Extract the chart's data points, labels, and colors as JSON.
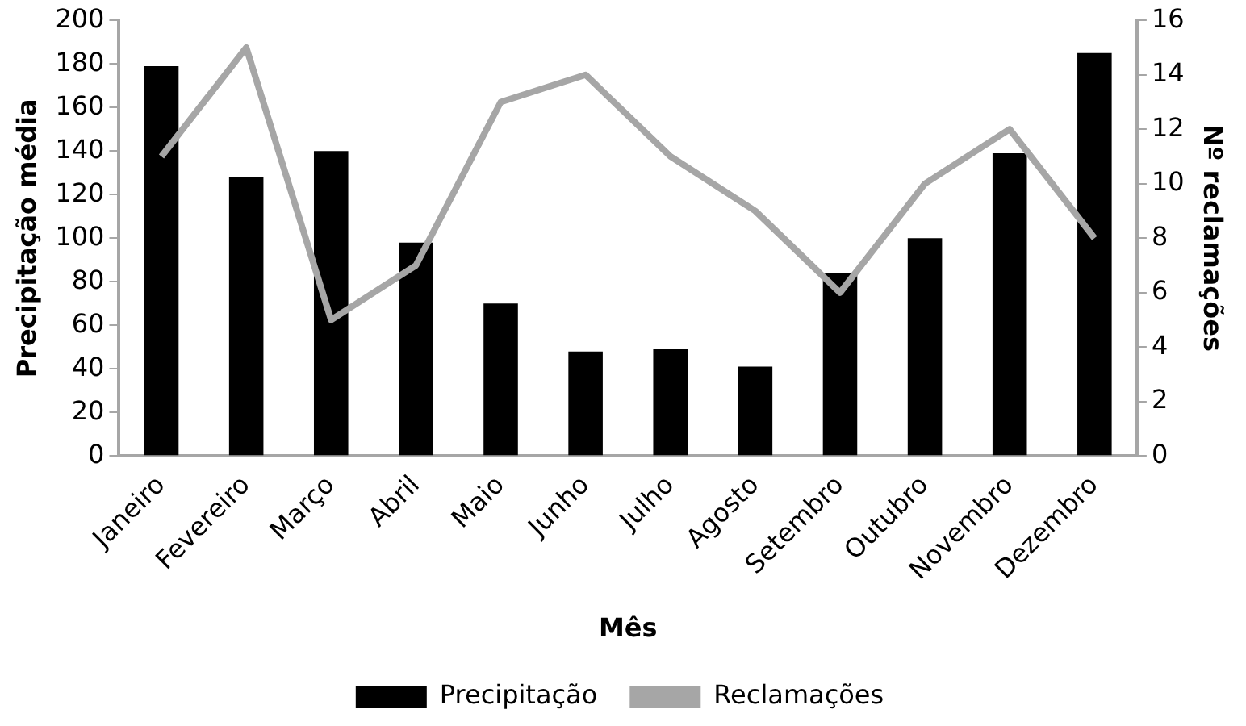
{
  "chart_data": {
    "type": "bar",
    "xlabel": "Mês",
    "ylabel": "Precipitação média",
    "y2label": "Nº reclamações",
    "categories": [
      "Janeiro",
      "Fevereiro",
      "Março",
      "Abril",
      "Maio",
      "Junho",
      "Julho",
      "Agosto",
      "Setembro",
      "Outubro",
      "Novembro",
      "Dezembro"
    ],
    "series": [
      {
        "name": "Precipitação",
        "color": "#000000",
        "values": [
          179,
          128,
          140,
          98,
          70,
          48,
          49,
          41,
          84,
          100,
          139,
          185
        ]
      },
      {
        "name": "Reclamações",
        "type": "line",
        "axis": "y2",
        "color": "#a6a6a6",
        "values": [
          11,
          15,
          5,
          7,
          13,
          14,
          11,
          9,
          6,
          10,
          12,
          8
        ]
      }
    ],
    "ylim": [
      0,
      200
    ],
    "yticks": [
      0,
      20,
      40,
      60,
      80,
      100,
      120,
      140,
      160,
      180,
      200
    ],
    "y2lim": [
      0,
      16
    ],
    "y2ticks": [
      0,
      2,
      4,
      6,
      8,
      10,
      12,
      14,
      16
    ],
    "grid": false,
    "legend": "bottom",
    "marker": "none",
    "line_style": "solid"
  }
}
